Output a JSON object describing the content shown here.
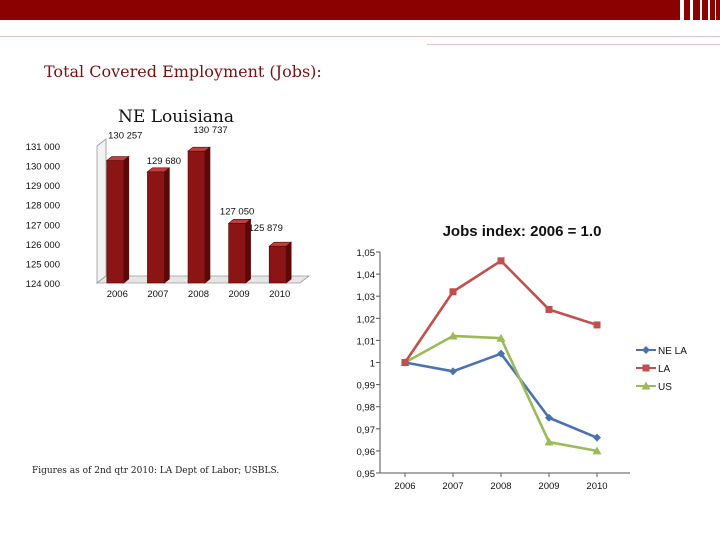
{
  "slide": {
    "title": "Total Covered Employment (Jobs):",
    "footnote": "Figures as of 2nd qtr 2010: LA Dept of Labor; USBLS."
  },
  "colors": {
    "brand": "#8b0000",
    "bar": "#a01818",
    "ne_la": "#4a72b0",
    "la": "#c0504d",
    "us": "#9bbb59"
  },
  "chart_data": [
    {
      "type": "bar",
      "title": "NE Louisiana",
      "categories": [
        "2006",
        "2007",
        "2008",
        "2009",
        "2010"
      ],
      "values": [
        130257,
        129680,
        130737,
        127050,
        125879
      ],
      "value_labels": [
        "130 257",
        "129 680",
        "130 737",
        "127 050",
        "125 879"
      ],
      "y_ticks": [
        "131 000",
        "130 000",
        "129 000",
        "128 000",
        "127 000",
        "126 000",
        "125 000",
        "124 000"
      ],
      "y_tick_values": [
        131000,
        130000,
        129000,
        128000,
        127000,
        126000,
        125000,
        124000
      ],
      "ylim": [
        124000,
        131000
      ],
      "xlabel": "",
      "ylabel": "",
      "legend": false
    },
    {
      "type": "line",
      "title": "Jobs index: 2006 = 1.0",
      "categories": [
        "2006",
        "2007",
        "2008",
        "2009",
        "2010"
      ],
      "series": [
        {
          "name": "NE LA",
          "values": [
            1.0,
            0.996,
            1.004,
            0.975,
            0.966
          ]
        },
        {
          "name": "LA",
          "values": [
            1.0,
            1.032,
            1.046,
            1.024,
            1.017
          ]
        },
        {
          "name": "US",
          "values": [
            1.0,
            1.012,
            1.011,
            0.964,
            0.96
          ]
        }
      ],
      "y_ticks": [
        "1,05",
        "1,04",
        "1,03",
        "1,02",
        "1,01",
        "1",
        "0,99",
        "0,98",
        "0,97",
        "0,96",
        "0,95"
      ],
      "y_tick_values": [
        1.05,
        1.04,
        1.03,
        1.02,
        1.01,
        1.0,
        0.99,
        0.98,
        0.97,
        0.96,
        0.95
      ],
      "ylim": [
        0.95,
        1.05
      ],
      "legend": "right",
      "xlabel": "",
      "ylabel": ""
    }
  ]
}
